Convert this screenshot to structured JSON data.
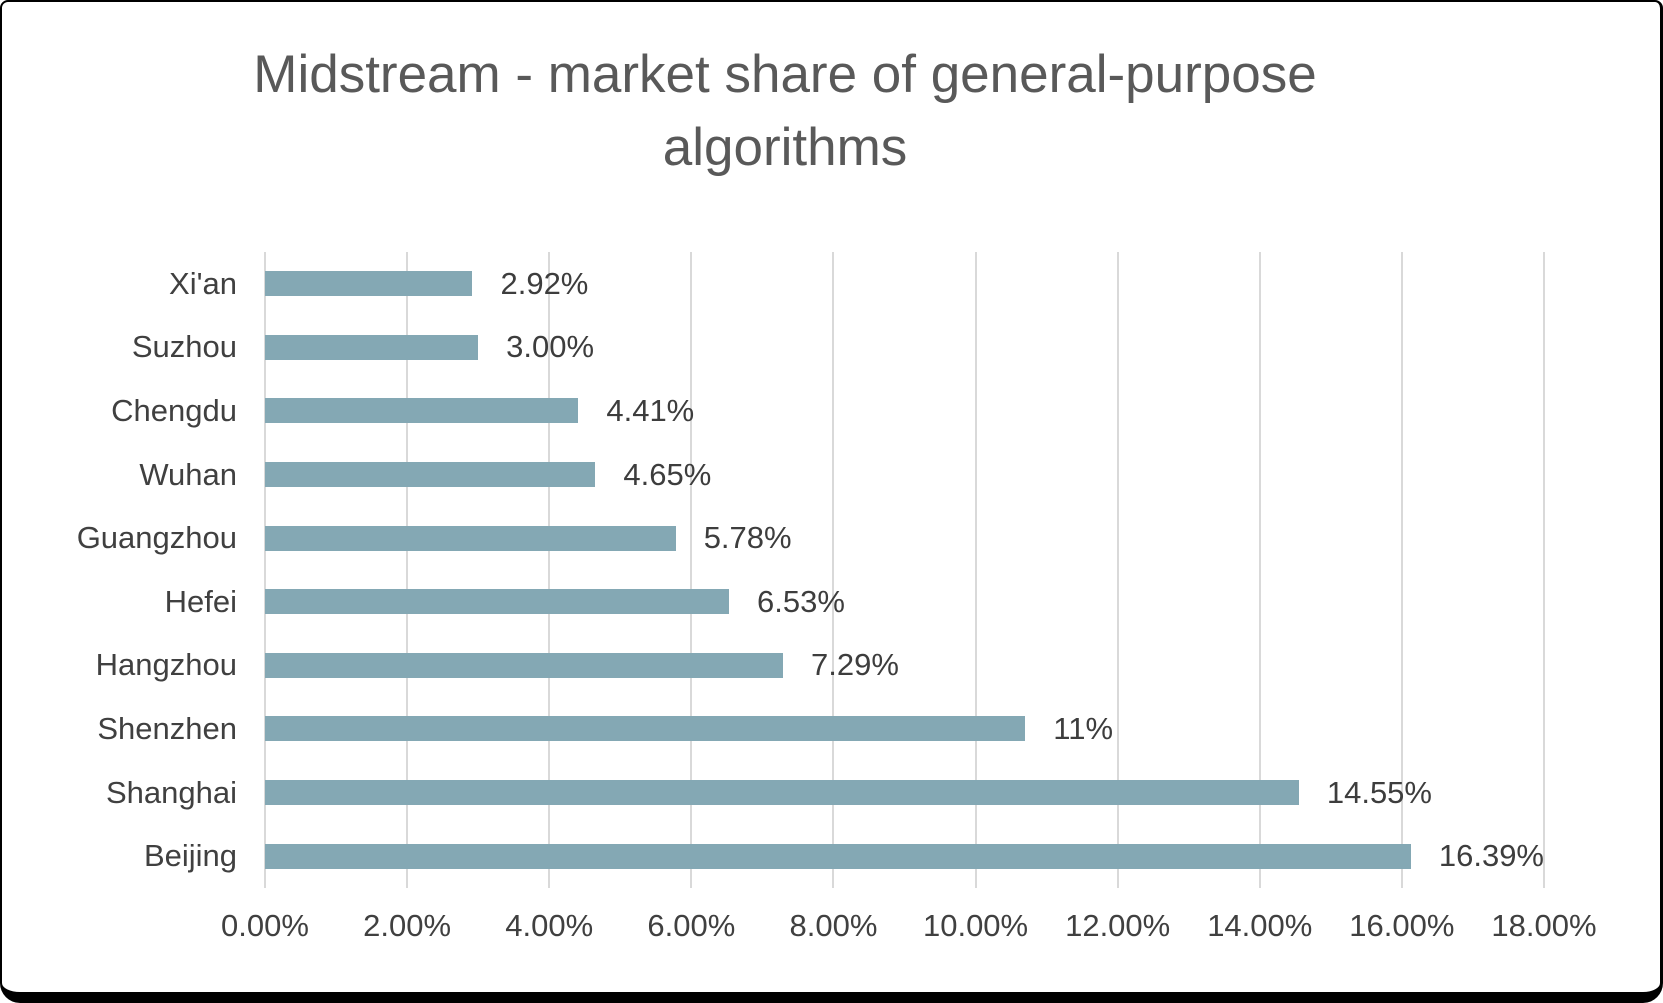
{
  "chart_data": {
    "type": "bar",
    "orientation": "horizontal",
    "title": "Midstream - market share of general-purpose algorithms",
    "categories": [
      "Xi'an",
      "Suzhou",
      "Chengdu",
      "Wuhan",
      "Guangzhou",
      "Hefei",
      "Hangzhou",
      "Shenzhen",
      "Shanghai",
      "Beijing"
    ],
    "values": [
      2.92,
      3.0,
      4.41,
      4.65,
      5.78,
      6.53,
      7.29,
      10.7,
      14.55,
      16.39
    ],
    "value_labels": [
      "2.92%",
      "3.00%",
      "4.41%",
      "4.65%",
      "5.78%",
      "6.53%",
      "7.29%",
      "11%",
      "14.55%",
      "16.39%"
    ],
    "x_axis": {
      "min": 0,
      "max": 18,
      "tick_step": 2,
      "tick_labels": [
        "0.00%",
        "2.00%",
        "4.00%",
        "6.00%",
        "8.00%",
        "10.00%",
        "12.00%",
        "14.00%",
        "16.00%",
        "18.00%"
      ]
    },
    "grid": true,
    "legend": false,
    "colors": {
      "bar": "#84a8b4",
      "gridline": "#d9d9d9",
      "title_text": "#595959",
      "label_text": "#404040",
      "background": "#ffffff",
      "border": "#000000"
    }
  }
}
